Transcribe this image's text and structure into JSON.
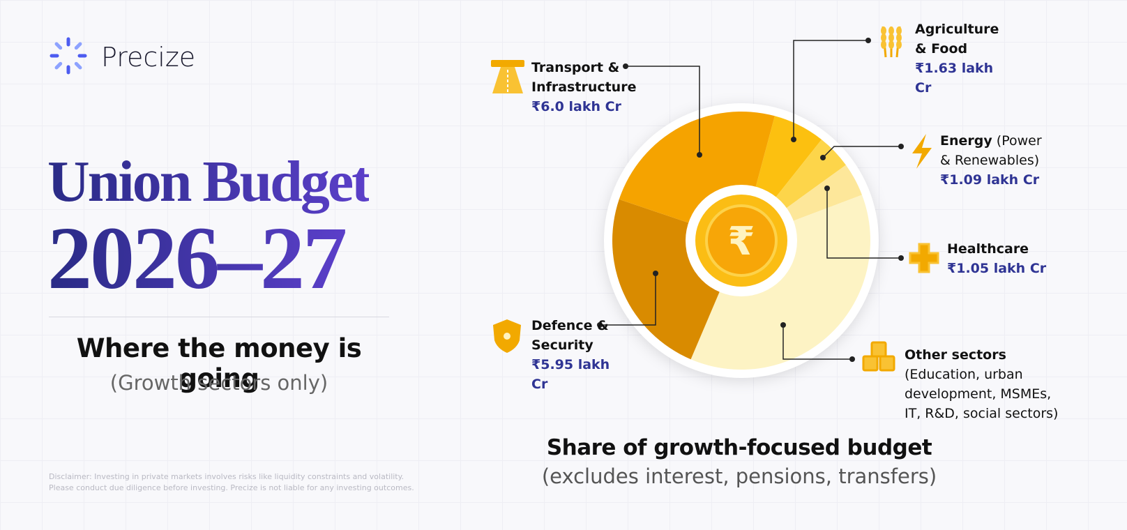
{
  "brand": "Precize",
  "headline": {
    "line1": "Union Budget",
    "line2": "2026–27"
  },
  "subtitle": "Where the money is going",
  "subtitle_note": "(Growth sectors only)",
  "disclaimer": "Disclaimer: Investing in private markets involves risks like liquidity constraints and volatility. Please conduct due diligence before investing. Precize is not liable for any investing outcomes.",
  "chart_data": {
    "type": "pie",
    "title": "Share of growth-focused budget",
    "subtitle": "(excludes interest, pensions, transfers)",
    "center_symbol": "₹",
    "categories": [
      "Agriculture & Food",
      "Energy",
      "Healthcare",
      "Other sectors",
      "Defence & Security",
      "Transport & Infrastructure"
    ],
    "notes": [
      null,
      "(Power & Renewables)",
      null,
      "(Education, urban development, MSMEs, IT, R&D, social sectors)",
      null,
      null
    ],
    "values": [
      1.63,
      1.09,
      1.05,
      9.3,
      5.95,
      6.0
    ],
    "value_labels": [
      "₹1.63 lakh Cr",
      "₹1.09 lakh Cr",
      "₹1.05 lakh Cr",
      null,
      "₹5.95 lakh Cr",
      "₹6.0 lakh Cr"
    ],
    "colors": [
      "#fcc010",
      "#fdd54a",
      "#fde79a",
      "#fdf3c4",
      "#d98b00",
      "#f5a300"
    ]
  }
}
